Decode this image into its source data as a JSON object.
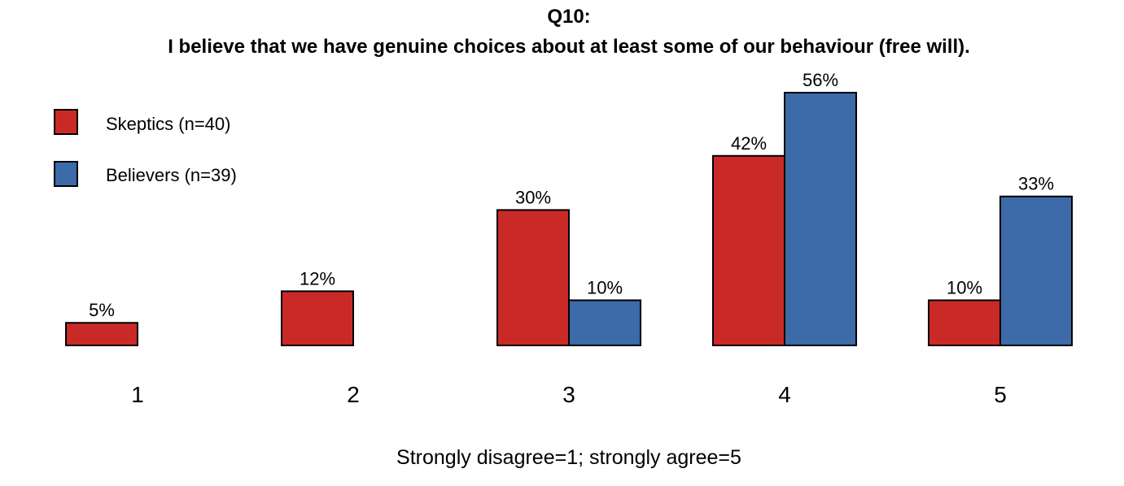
{
  "chart_data": {
    "type": "bar",
    "title": "Q10:",
    "subtitle": "I believe that we have genuine choices about at least some of our behaviour (free will).",
    "xlabel": "Strongly disagree=1; strongly agree=5",
    "ylabel": "",
    "categories": [
      "1",
      "2",
      "3",
      "4",
      "5"
    ],
    "series": [
      {
        "name": "Skeptics (n=40)",
        "color": "#C92A28",
        "values": [
          5,
          12,
          30,
          42,
          10
        ],
        "labels": [
          "5%",
          "12%",
          "30%",
          "42%",
          "10%"
        ]
      },
      {
        "name": "Believers (n=39)",
        "color": "#3D6AA8",
        "values": [
          0,
          0,
          10,
          56,
          33
        ],
        "labels": [
          "",
          "",
          "10%",
          "56%",
          "33%"
        ]
      }
    ],
    "ylim": [
      0,
      56
    ],
    "grid": false,
    "legend_position": "top-left"
  }
}
